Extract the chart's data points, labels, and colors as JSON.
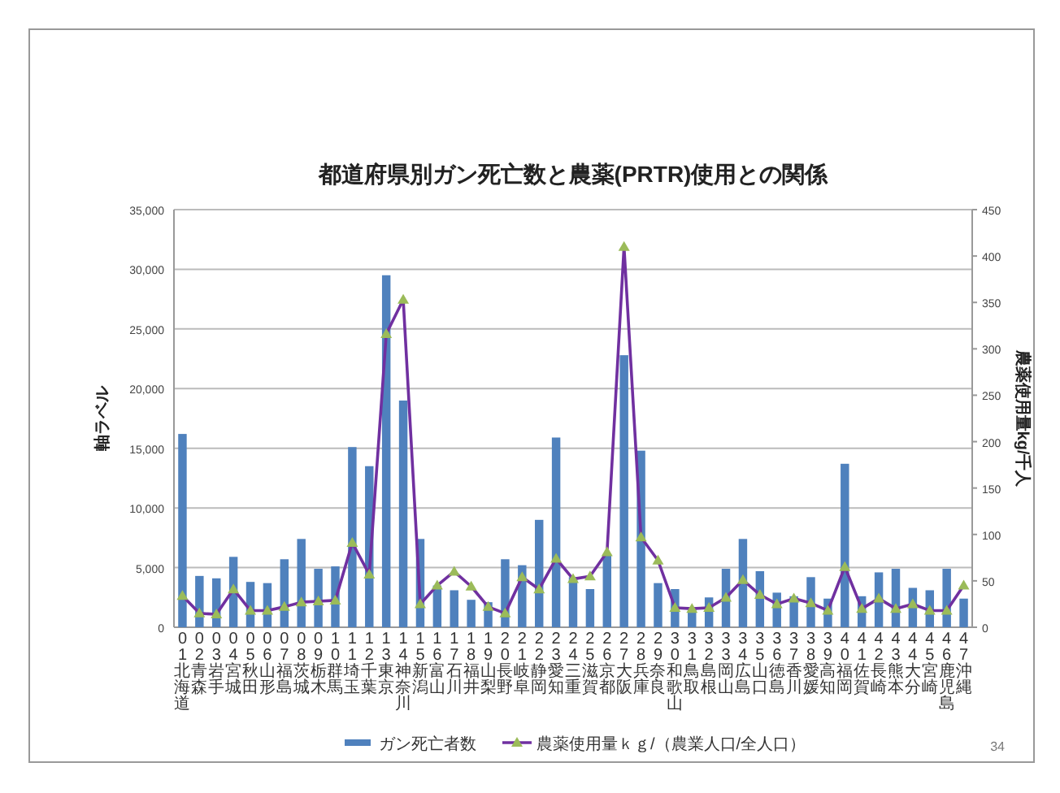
{
  "chart_data": {
    "type": "bar",
    "title": "都道府県別ガン死亡数と農薬(PRTR)使用との関係",
    "ylabel": "軸ラベル",
    "y2label": "農薬使用量kg/千人",
    "categories": [
      "01北海道",
      "02青森",
      "03岩手",
      "04宮城",
      "05秋田",
      "06山形",
      "07福島",
      "08茨城",
      "09栃木",
      "10群馬",
      "11埼玉",
      "12千葉",
      "13東京",
      "14神奈川",
      "15新潟",
      "16富山",
      "17石川",
      "18福井",
      "19山梨",
      "20長野",
      "21岐阜",
      "22静岡",
      "23愛知",
      "24三重",
      "25滋賀",
      "26京都",
      "27大阪",
      "28兵庫",
      "29奈良",
      "30和歌山",
      "31鳥取",
      "32島根",
      "33岡山",
      "34広島",
      "35山口",
      "36徳島",
      "37香川",
      "38愛媛",
      "39高知",
      "40福岡",
      "41佐賀",
      "42長崎",
      "43熊本",
      "44大分",
      "45宮崎",
      "46鹿児島",
      "47沖縄"
    ],
    "series": [
      {
        "name": "ガン死亡者数",
        "color": "#4f81bd",
        "values": [
          16200,
          4300,
          4100,
          5900,
          3800,
          3700,
          5700,
          7400,
          4900,
          5100,
          15100,
          13500,
          29500,
          19000,
          7400,
          3500,
          3100,
          2300,
          2100,
          5700,
          5200,
          9000,
          15900,
          4200,
          3200,
          6000,
          22800,
          14800,
          3700,
          3200,
          1500,
          2500,
          4900,
          7400,
          4700,
          2900,
          2600,
          4200,
          2400,
          13700,
          2600,
          4600,
          4900,
          3300,
          3100,
          4900,
          2400
        ]
      },
      {
        "name": "農薬使用量ｋｇ/（農業人口/全人口）",
        "type": "line",
        "axis": "y2",
        "color": "#7030a0",
        "values": [
          34,
          15,
          14,
          41,
          18,
          18,
          22,
          27,
          28,
          29,
          91,
          57,
          316,
          353,
          25,
          45,
          60,
          44,
          22,
          15,
          54,
          41,
          74,
          52,
          55,
          81,
          410,
          97,
          72,
          21,
          20,
          21,
          32,
          51,
          35,
          25,
          31,
          26,
          18,
          65,
          20,
          31,
          20,
          25,
          18,
          18,
          45
        ]
      }
    ],
    "ylim": [
      0,
      35000
    ],
    "yticks": [
      0,
      {
        "value": 5000,
        "label": "5,000"
      },
      {
        "value": 10000,
        "label": "10,000"
      },
      {
        "value": 15000,
        "label": "15,000"
      },
      {
        "value": 20000,
        "label": "20,000"
      },
      {
        "value": 25000,
        "label": "25,000"
      },
      {
        "value": 30000,
        "label": "30,000"
      },
      {
        "value": 35000,
        "label": "35,000"
      }
    ],
    "y2lim": [
      0,
      450
    ],
    "y2ticks": [
      0,
      50,
      100,
      150,
      200,
      250,
      300,
      350,
      400,
      450
    ],
    "grid": "y",
    "legend": "bottom",
    "marker": "triangle",
    "annotations": [
      "34"
    ]
  }
}
